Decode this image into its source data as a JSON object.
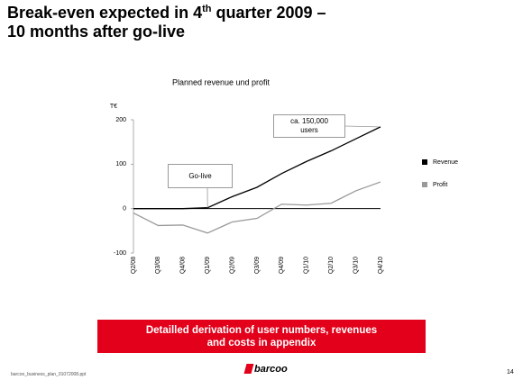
{
  "slide": {
    "title": [
      "Break-even expected in 4",
      "th",
      " quarter 2009 – 10 months after go-live"
    ],
    "appendix_box": "Detailled derivation of user numbers, revenues and costs in appendix",
    "footer_file": "barcoo_business_plan_01072008.ppt",
    "logo": "barcoo",
    "page_number": "14"
  },
  "chart_data": {
    "type": "line",
    "title": "Planned revenue und profit",
    "y_label": "T€",
    "categories": [
      "Q2/08",
      "Q3/08",
      "Q4/08",
      "Q1/09",
      "Q2/09",
      "Q3/09",
      "Q4/09",
      "Q1/10",
      "Q2/10",
      "Q3/10",
      "Q4/10"
    ],
    "series": [
      {
        "name": "Revenue",
        "color": "#000000",
        "values": [
          0,
          0,
          0,
          2,
          27,
          48,
          79,
          106,
          130,
          157,
          184
        ]
      },
      {
        "name": "Profit",
        "color": "#999999",
        "values": [
          -10,
          -38,
          -37,
          -55,
          -30,
          -22,
          10,
          8,
          12,
          40,
          60
        ]
      }
    ],
    "ylim": [
      -100,
      200
    ],
    "yticks": [
      -100,
      0,
      100,
      200
    ],
    "grid": false,
    "legend": "right",
    "annotations": [
      "Go-live",
      "ca. 150,000 users"
    ]
  }
}
